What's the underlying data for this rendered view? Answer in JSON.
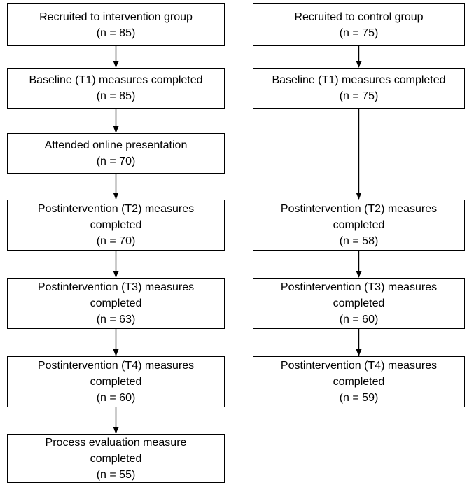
{
  "intervention": [
    {
      "lines": [
        "Recruited to intervention group",
        "(n = 85)"
      ]
    },
    {
      "lines": [
        "Baseline (T1) measures completed",
        "(n = 85)"
      ]
    },
    {
      "lines": [
        "Attended online presentation",
        "(n = 70)"
      ]
    },
    {
      "lines": [
        "Postintervention (T2) measures",
        "completed",
        "(n = 70)"
      ]
    },
    {
      "lines": [
        "Postintervention (T3) measures",
        "completed",
        "(n = 63)"
      ]
    },
    {
      "lines": [
        "Postintervention (T4) measures",
        "completed",
        "(n = 60)"
      ]
    },
    {
      "lines": [
        "Process evaluation measure",
        "completed",
        "(n = 55)"
      ]
    }
  ],
  "control": [
    {
      "lines": [
        "Recruited to control group",
        "(n = 75)"
      ]
    },
    {
      "lines": [
        "Baseline (T1) measures completed",
        "(n = 75)"
      ]
    },
    {
      "lines": [
        "Postintervention (T2) measures",
        "completed",
        "(n = 58)"
      ]
    },
    {
      "lines": [
        "Postintervention (T3) measures",
        "completed",
        "(n = 60)"
      ]
    },
    {
      "lines": [
        "Postintervention (T4) measures",
        "completed",
        "(n = 59)"
      ]
    }
  ],
  "colors": {
    "stroke": "#000000",
    "background": "#ffffff"
  }
}
